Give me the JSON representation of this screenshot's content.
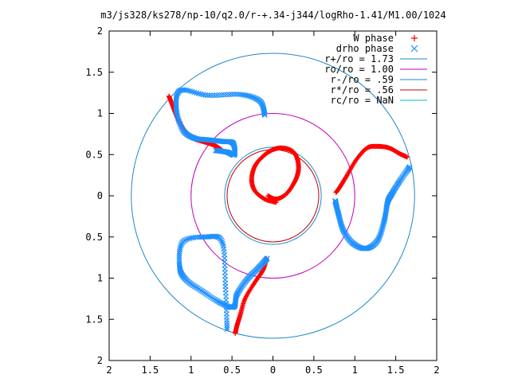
{
  "chart_data": {
    "type": "scatter",
    "title": "m3/js328/ks278/np-10/q2.0/r-+.34-j344/logRho-1.41/M1.00/1024",
    "xlabel": "",
    "ylabel": "",
    "xlim": [
      -2,
      2
    ],
    "ylim": [
      -2,
      2
    ],
    "x_ticks": [
      "2",
      "1.5",
      "1",
      "0.5",
      "0",
      "0.5",
      "1",
      "1.5",
      "2"
    ],
    "y_ticks": [
      "2",
      "1.5",
      "1",
      "0.5",
      "0",
      "0.5",
      "1",
      "1.5",
      "2"
    ],
    "grid": false,
    "legend_position": "top-right",
    "colors": {
      "w_phase": "#ff0000",
      "drho_phase": "#1e90ff",
      "r_plus": "#1e88c8",
      "ro": "#c000c0",
      "r_minus": "#1e88c8",
      "r_star": "#c00000",
      "rc": "#00c0c0"
    },
    "series": [
      {
        "name": "W phase",
        "marker": "plus",
        "arms": [
          {
            "x": [
              -1.27,
              -1.22,
              -1.16,
              -1.08,
              -0.98,
              -0.86,
              -0.76,
              -0.69,
              -0.62
            ],
            "y": [
              1.21,
              1.08,
              0.93,
              0.79,
              0.7,
              0.66,
              0.63,
              0.6,
              0.55
            ]
          },
          {
            "x": [
              1.64,
              1.55,
              1.42,
              1.28,
              1.15,
              1.02,
              0.9,
              0.82,
              0.77
            ],
            "y": [
              0.47,
              0.51,
              0.58,
              0.6,
              0.58,
              0.44,
              0.24,
              0.11,
              0.04
            ]
          },
          {
            "x": [
              -0.46,
              -0.44,
              -0.4,
              -0.34,
              -0.22,
              -0.12,
              -0.08
            ],
            "y": [
              -1.67,
              -1.58,
              -1.45,
              -1.25,
              -1.05,
              -0.9,
              -0.76
            ]
          },
          {
            "x": [
              -0.06,
              0.04,
              0.16,
              0.26,
              0.31,
              0.3,
              0.24,
              0.12,
              0.0,
              -0.12,
              -0.22,
              -0.26,
              -0.22,
              -0.1,
              0.04
            ],
            "y": [
              0.0,
              -0.04,
              0.02,
              0.16,
              0.3,
              0.44,
              0.54,
              0.58,
              0.56,
              0.48,
              0.36,
              0.2,
              0.06,
              -0.04,
              -0.08
            ]
          }
        ]
      },
      {
        "name": "drho phase",
        "marker": "cross",
        "arms": [
          {
            "x": [
              -0.7,
              -0.56,
              -0.47,
              -0.49,
              -0.62,
              -0.8,
              -0.96,
              -1.1,
              -1.18,
              -1.13,
              -0.8,
              -0.4,
              -0.16,
              -0.1
            ],
            "y": [
              0.55,
              0.53,
              0.5,
              0.64,
              0.66,
              0.68,
              0.7,
              0.8,
              1.05,
              1.28,
              1.22,
              1.23,
              1.15,
              0.98
            ]
          },
          {
            "x": [
              0.76,
              0.8,
              0.86,
              0.98,
              1.14,
              1.28,
              1.36,
              1.4,
              1.45,
              1.55,
              1.67
            ],
            "y": [
              -0.06,
              -0.22,
              -0.42,
              -0.58,
              -0.64,
              -0.54,
              -0.3,
              -0.08,
              0.02,
              0.18,
              0.35
            ]
          },
          {
            "x": [
              -0.07,
              -0.18,
              -0.32,
              -0.44,
              -0.48,
              -0.64,
              -0.86,
              -1.06,
              -1.14,
              -1.1,
              -0.82,
              -0.62,
              -0.58,
              -0.56
            ],
            "y": [
              -0.76,
              -0.88,
              -1.02,
              -1.2,
              -1.35,
              -1.3,
              -1.16,
              -1.02,
              -0.86,
              -0.56,
              -0.5,
              -0.56,
              -1.1,
              -1.62
            ]
          }
        ]
      }
    ],
    "circles": [
      {
        "name": "r+/ro = 1.73",
        "r": 1.73
      },
      {
        "name": "ro/ro = 1.00",
        "r": 1.0
      },
      {
        "name": "r-/ro = .59",
        "r": 0.59
      },
      {
        "name": "r*/ro = .56",
        "r": 0.56
      },
      {
        "name": "rc/ro = NaN",
        "r": null
      }
    ]
  }
}
